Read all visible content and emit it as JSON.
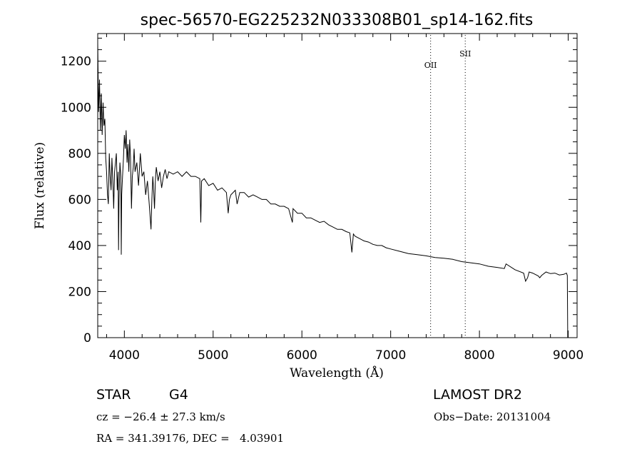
{
  "chart_data": {
    "type": "line",
    "title": "spec-56570-EG225232N033308B01_sp14-162.fits",
    "xlabel": "Wavelength (Å)",
    "ylabel": "Flux (relative)",
    "xlim": [
      3700,
      9100
    ],
    "ylim": [
      0,
      1320
    ],
    "x_ticks": [
      4000,
      5000,
      6000,
      7000,
      8000,
      9000
    ],
    "y_ticks": [
      0,
      200,
      400,
      600,
      800,
      1000,
      1200
    ],
    "grid": false,
    "series": [
      {
        "x": [
          3700,
          3710,
          3720,
          3730,
          3740,
          3750,
          3760,
          3770,
          3780,
          3790,
          3800,
          3810,
          3820,
          3830,
          3840,
          3850,
          3860,
          3870,
          3880,
          3890,
          3900,
          3910,
          3920,
          3930,
          3935,
          3940,
          3950,
          3960,
          3965,
          3970,
          3980,
          3990,
          4000,
          4010,
          4020,
          4030,
          4040,
          4050,
          4060,
          4070,
          4080,
          4090,
          4100,
          4110,
          4120,
          4140,
          4160,
          4180,
          4200,
          4220,
          4240,
          4260,
          4280,
          4300,
          4310,
          4320,
          4330,
          4340,
          4350,
          4360,
          4380,
          4400,
          4420,
          4440,
          4460,
          4480,
          4500,
          4550,
          4600,
          4650,
          4700,
          4750,
          4800,
          4850,
          4861,
          4870,
          4900,
          4950,
          5000,
          5050,
          5100,
          5150,
          5170,
          5183,
          5200,
          5250,
          5270,
          5300,
          5350,
          5400,
          5450,
          5500,
          5550,
          5600,
          5650,
          5700,
          5750,
          5800,
          5850,
          5893,
          5900,
          5950,
          6000,
          6050,
          6100,
          6150,
          6200,
          6250,
          6300,
          6350,
          6400,
          6450,
          6500,
          6540,
          6563,
          6580,
          6600,
          6650,
          6700,
          6750,
          6800,
          6850,
          6900,
          6950,
          7000,
          7100,
          7200,
          7300,
          7400,
          7500,
          7600,
          7700,
          7800,
          7900,
          8000,
          8100,
          8200,
          8280,
          8300,
          8400,
          8498,
          8520,
          8542,
          8560,
          8600,
          8662,
          8680,
          8700,
          8750,
          8800,
          8850,
          8900,
          8950,
          8980,
          8990,
          8995,
          9000
        ],
        "y": [
          1280,
          980,
          1120,
          900,
          1060,
          880,
          1020,
          920,
          950,
          780,
          720,
          620,
          580,
          800,
          700,
          640,
          780,
          680,
          560,
          720,
          760,
          800,
          640,
          720,
          380,
          600,
          760,
          700,
          360,
          620,
          700,
          780,
          880,
          820,
          900,
          760,
          840,
          720,
          860,
          780,
          560,
          700,
          740,
          820,
          720,
          760,
          660,
          800,
          700,
          720,
          620,
          680,
          580,
          470,
          600,
          700,
          640,
          560,
          690,
          740,
          680,
          720,
          650,
          700,
          730,
          690,
          720,
          710,
          720,
          700,
          720,
          700,
          700,
          690,
          500,
          680,
          690,
          660,
          670,
          640,
          650,
          630,
          540,
          600,
          620,
          640,
          580,
          630,
          630,
          610,
          620,
          610,
          600,
          600,
          580,
          580,
          570,
          570,
          560,
          500,
          560,
          540,
          540,
          520,
          520,
          510,
          500,
          505,
          490,
          480,
          470,
          470,
          460,
          455,
          370,
          450,
          440,
          430,
          420,
          415,
          405,
          400,
          400,
          390,
          385,
          375,
          365,
          360,
          355,
          348,
          345,
          340,
          330,
          325,
          320,
          310,
          305,
          300,
          320,
          295,
          280,
          245,
          260,
          285,
          280,
          268,
          260,
          270,
          285,
          278,
          280,
          272,
          275,
          280,
          270,
          0,
          0
        ]
      }
    ],
    "annotations": [
      {
        "label": "OII",
        "x": 7450
      },
      {
        "label": "SII",
        "x": 7840
      }
    ]
  },
  "info": {
    "type_label": "STAR",
    "subclass": "G4",
    "survey": "LAMOST DR2",
    "cz": "cz = −26.4 ± 27.3 km/s",
    "obs_date": "Obs−Date: 20131004",
    "coords": "RA = 341.39176, DEC =   4.03901"
  }
}
